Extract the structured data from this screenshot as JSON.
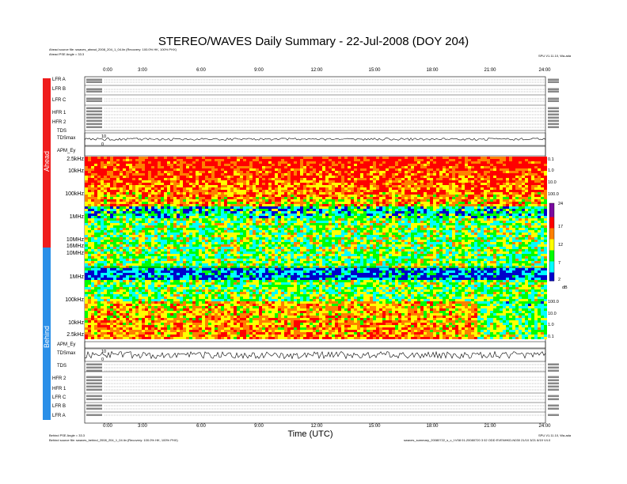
{
  "chart_data": {
    "type": "heatmap",
    "title": "STEREO/WAVES Daily Summary - 22-Jul-2008 (DOY 204)",
    "xlabel": "Time (UTC)",
    "x_ticks": [
      "0:00",
      "3:00",
      "6:00",
      "9:00",
      "12:00",
      "15:00",
      "18:00",
      "21:00",
      "24:00"
    ],
    "xlim": [
      "0:00",
      "24:00"
    ],
    "colorbar": {
      "min": 2,
      "max": 24,
      "ticks": [
        "24",
        "17",
        "12",
        "7",
        "2"
      ],
      "unit": "dB"
    },
    "ahead": {
      "source_text": "Ahead source file: swaves_ahead_2008_204_1_04.lin (Recovery: 100.0% HK, 100% PHX)",
      "spe_text": "Ahead PSE Angle = 33.3",
      "freq_labels": [
        "2.5kHz",
        "10kHz",
        "100kHz",
        "1MHz",
        "10MHz",
        "16MHz",
        "10MHz"
      ],
      "right_labels": [
        "0.1",
        "1.0",
        "10.0",
        "100.0"
      ],
      "panels": [
        "LFR A",
        "LFR B",
        "LFR C",
        "HFR 1",
        "HFR 2",
        "TDS",
        "TDSmax",
        "APM_Ey"
      ],
      "tds_scale": [
        "10",
        "0"
      ]
    },
    "behind": {
      "source_text": "Behind source file: swaves_behind_2008_204_1_04.lin (Recovery: 100.0% HK, 100% PHX)",
      "spe_text": "Behind PSE Angle = 33.3",
      "freq_labels": [
        "1MHz",
        "100kHz",
        "10kHz",
        "2.5kHz"
      ],
      "right_labels": [
        "100.0",
        "10.0",
        "1.0",
        "0.1"
      ],
      "panels": [
        "APM_Ey",
        "TDSmax",
        "TDS",
        "HFR 2",
        "HFR 1",
        "LFR C",
        "LFR B",
        "LFR A"
      ],
      "tds_scale": [
        "10",
        "0"
      ]
    },
    "sidebar": {
      "ahead": "Ahead",
      "behind": "Behind"
    },
    "colors": {
      "ahead_bar": "#ef1c1c",
      "behind_bar": "#2a8fe8"
    },
    "cmap": [
      "#0000cc",
      "#00ffff",
      "#00ff00",
      "#ffff00",
      "#ff8000",
      "#ff0000"
    ]
  },
  "footer": {
    "software": "SPU V1.11.10, Wa-ada",
    "right_note": "swaves_summary_20080722_s_c_f.V08 01-20080720 3 02 ODD EVENHKD-N030 21/10 3/21 8/19 V4.0"
  }
}
